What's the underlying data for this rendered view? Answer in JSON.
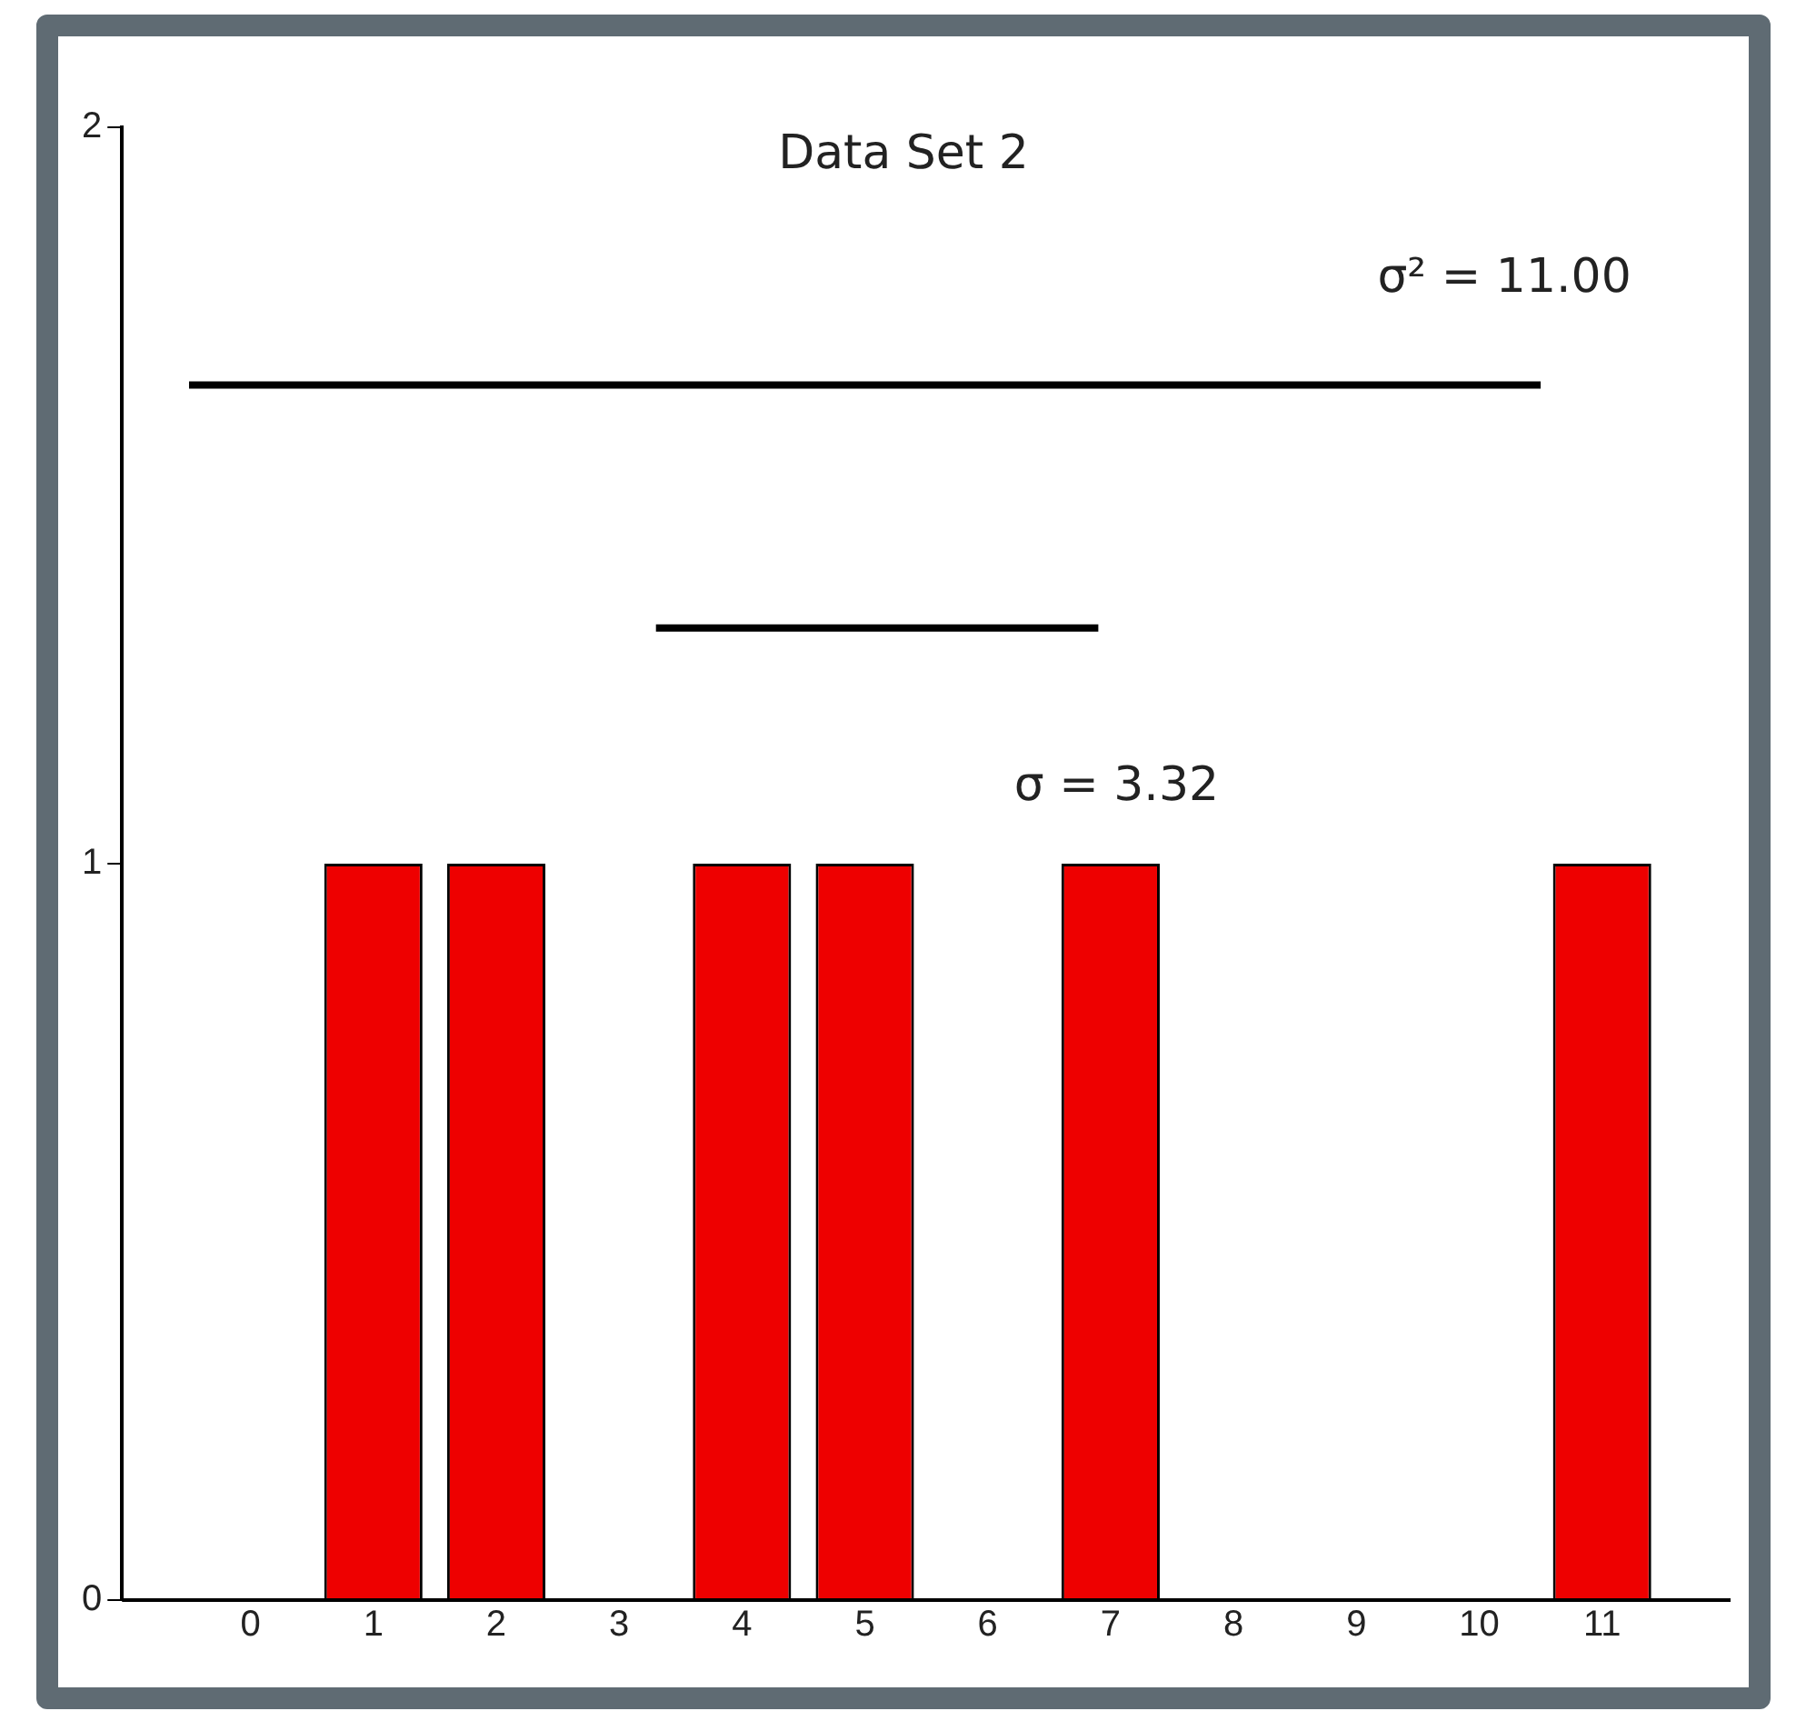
{
  "chart_data": {
    "type": "bar",
    "title": "Data Set 2",
    "x": [
      0,
      1,
      2,
      3,
      4,
      5,
      6,
      7,
      8,
      9,
      10,
      11
    ],
    "series": [
      {
        "color": "#ee0000",
        "values": [
          0,
          1,
          1,
          0,
          1,
          1,
          0,
          1,
          0,
          0,
          0,
          1
        ]
      },
      {
        "type": "line",
        "name": "σ² = 11.00",
        "color": "#000000",
        "x": [
          -0.5,
          10.5
        ],
        "values": [
          1.65,
          1.65
        ]
      },
      {
        "type": "line",
        "name": "σ = 3.32",
        "color": "#000000",
        "x": [
          3.3,
          6.9
        ],
        "values": [
          1.32,
          1.32
        ]
      }
    ],
    "xlim": [
      -0.5,
      11.5
    ],
    "xticks": [
      0,
      1,
      2,
      3,
      4,
      5,
      6,
      7,
      8,
      9,
      10,
      11
    ],
    "ylim": [
      0,
      2
    ],
    "yticks": [
      0,
      1,
      2
    ],
    "grid": false,
    "legend": false,
    "marker": "none",
    "line_style": "solid"
  }
}
